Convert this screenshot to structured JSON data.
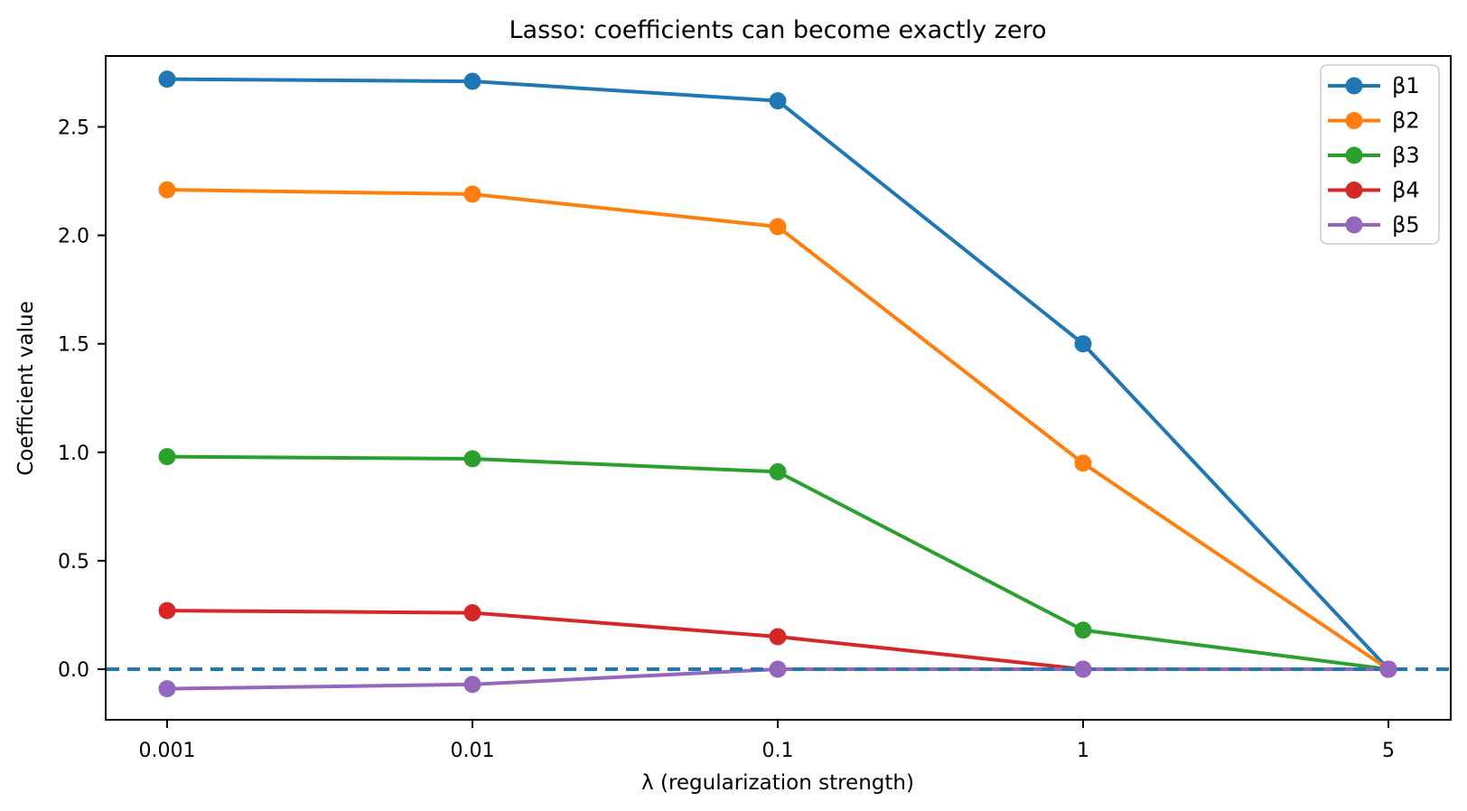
{
  "chart_data": {
    "type": "line",
    "title": "Lasso: coefficients can become exactly zero",
    "xlabel": "λ (regularization strength)",
    "ylabel": "Coefficient value",
    "x_values": [
      0.001,
      0.01,
      0.1,
      1,
      5
    ],
    "x_tick_labels": [
      "0.001",
      "0.01",
      "0.1",
      "1",
      "5"
    ],
    "x_spacing": "equal",
    "y_ticks": [
      0.0,
      0.5,
      1.0,
      1.5,
      2.0,
      2.5
    ],
    "y_tick_labels": [
      "0.0",
      "0.5",
      "1.0",
      "1.5",
      "2.0",
      "2.5"
    ],
    "ylim": [
      -0.23,
      2.83
    ],
    "grid": false,
    "legend_position": "upper right",
    "zero_line": {
      "y": 0.0,
      "style": "dashed",
      "color": "#1f77b4"
    },
    "series": [
      {
        "name": "β1",
        "color": "#1f77b4",
        "values": [
          2.72,
          2.71,
          2.62,
          1.5,
          0.0
        ]
      },
      {
        "name": "β2",
        "color": "#ff7f0e",
        "values": [
          2.21,
          2.19,
          2.04,
          0.95,
          0.0
        ]
      },
      {
        "name": "β3",
        "color": "#2ca02c",
        "values": [
          0.98,
          0.97,
          0.91,
          0.18,
          0.0
        ]
      },
      {
        "name": "β4",
        "color": "#d62728",
        "values": [
          0.27,
          0.26,
          0.15,
          0.0,
          0.0
        ]
      },
      {
        "name": "β5",
        "color": "#9467bd",
        "values": [
          -0.09,
          -0.07,
          0.0,
          0.0,
          0.0
        ]
      }
    ]
  }
}
